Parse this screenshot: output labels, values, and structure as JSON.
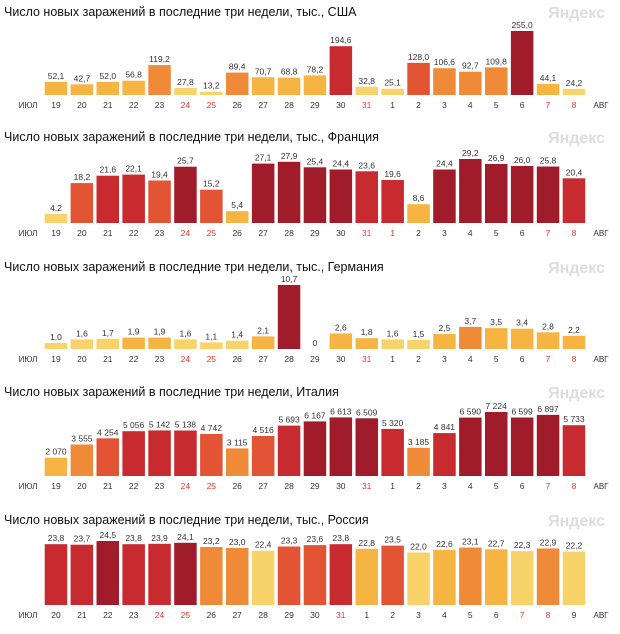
{
  "watermark": "Яндекс",
  "month_start": "ИЮЛ",
  "month_end": "АВГ",
  "colors": {
    "palette": [
      "#f8d36a",
      "#f6b442",
      "#ef8a38",
      "#e35435",
      "#c72a2f",
      "#a01c2b"
    ],
    "weekend_tick": "#e03a2d",
    "tick": "#333333",
    "label": "#333333",
    "title": "#111111",
    "watermark": "#dddddd"
  },
  "chart_data": [
    {
      "type": "bar",
      "title": "Число новых заражений в последние три недели, тыс., США",
      "categories": [
        "19",
        "20",
        "21",
        "22",
        "23",
        "24",
        "25",
        "26",
        "27",
        "28",
        "29",
        "30",
        "31",
        "1",
        "2",
        "3",
        "4",
        "5",
        "6",
        "7",
        "8"
      ],
      "values": [
        52.1,
        42.7,
        52.0,
        56.8,
        119.2,
        27.8,
        13.2,
        89.4,
        70.7,
        68.8,
        78.2,
        194.6,
        32.8,
        25.1,
        128.0,
        106.6,
        92.7,
        109.8,
        255.0,
        44.1,
        24.2
      ],
      "labels": [
        "52,1",
        "42,7",
        "52,0",
        "56,8",
        "119,2",
        "27,8",
        "13,2",
        "89,4",
        "70,7",
        "68,8",
        "78,2",
        "194,6",
        "32,8",
        "25,1",
        "128,0",
        "106,6",
        "92,7",
        "109,8",
        "255,0",
        "44,1",
        "24,2"
      ],
      "weekend": [
        5,
        6,
        12,
        19,
        20
      ],
      "ylim": [
        0,
        255
      ]
    },
    {
      "type": "bar",
      "title": "Число новых заражений в последние три недели, тыс., Франция",
      "categories": [
        "19",
        "20",
        "21",
        "22",
        "23",
        "24",
        "25",
        "26",
        "27",
        "28",
        "29",
        "30",
        "31",
        "1",
        "2",
        "3",
        "4",
        "5",
        "6",
        "7",
        "8"
      ],
      "values": [
        4.2,
        18.2,
        21.6,
        22.1,
        19.4,
        25.7,
        15.2,
        5.4,
        27.1,
        27.9,
        25.4,
        24.4,
        23.6,
        19.6,
        8.6,
        24.4,
        29.2,
        26.9,
        26.0,
        25.8,
        20.4
      ],
      "labels": [
        "4,2",
        "18,2",
        "21,6",
        "22,1",
        "19,4",
        "25,7",
        "15,2",
        "5,4",
        "27,1",
        "27,9",
        "25,4",
        "24,4",
        "23,6",
        "19,6",
        "8,6",
        "24,4",
        "29,2",
        "26,9",
        "26,0",
        "25,8",
        "20,4"
      ],
      "weekend": [
        5,
        6,
        12,
        13,
        19,
        20
      ],
      "ylim": [
        0,
        29.2
      ]
    },
    {
      "type": "bar",
      "title": "Число новых заражений в последние три недели, тыс., Германия",
      "categories": [
        "19",
        "20",
        "21",
        "22",
        "23",
        "24",
        "25",
        "26",
        "27",
        "28",
        "29",
        "30",
        "31",
        "1",
        "2",
        "3",
        "4",
        "5",
        "6",
        "7",
        "8"
      ],
      "values": [
        1.0,
        1.6,
        1.7,
        1.9,
        1.9,
        1.6,
        1.1,
        1.4,
        2.1,
        10.7,
        0,
        2.6,
        1.8,
        1.6,
        1.5,
        2.5,
        3.7,
        3.5,
        3.4,
        2.8,
        2.2
      ],
      "labels": [
        "1,0",
        "1,6",
        "1,7",
        "1,9",
        "1,9",
        "1,6",
        "1,1",
        "1,4",
        "2,1",
        "10,7",
        "0",
        "2,6",
        "1,8",
        "1,6",
        "1,5",
        "2,5",
        "3,7",
        "3,5",
        "3,4",
        "2,8",
        "2,2"
      ],
      "weekend": [
        5,
        6,
        12,
        19,
        20
      ],
      "ylim": [
        0,
        10.7
      ]
    },
    {
      "type": "bar",
      "title": "Число новых заражений в последние три недели, Италия",
      "categories": [
        "19",
        "20",
        "21",
        "22",
        "23",
        "24",
        "25",
        "26",
        "27",
        "28",
        "29",
        "30",
        "31",
        "1",
        "2",
        "3",
        "4",
        "5",
        "6",
        "7",
        "8"
      ],
      "values": [
        2070,
        3555,
        4254,
        5056,
        5142,
        5138,
        4742,
        3115,
        4516,
        5693,
        6167,
        6613,
        6509,
        5320,
        3185,
        4841,
        6590,
        7224,
        6599,
        6897,
        5733
      ],
      "labels": [
        "2 070",
        "3 555",
        "4 254",
        "5 056",
        "5 142",
        "5 138",
        "4 742",
        "3 115",
        "4 516",
        "5 693",
        "6 167",
        "6 613",
        "6 509",
        "5 320",
        "3 185",
        "4 841",
        "6 590",
        "7 224",
        "6 599",
        "6 897",
        "5 733"
      ],
      "weekend": [
        5,
        6,
        12,
        19,
        20
      ],
      "ylim": [
        0,
        7224
      ]
    },
    {
      "type": "bar",
      "title": "Число новых заражений в последние три недели, тыс., Россия",
      "categories": [
        "20",
        "21",
        "22",
        "23",
        "24",
        "25",
        "26",
        "27",
        "28",
        "29",
        "30",
        "31",
        "1",
        "2",
        "3",
        "4",
        "5",
        "6",
        "7",
        "8",
        "9"
      ],
      "values": [
        23.8,
        23.7,
        24.5,
        23.8,
        23.9,
        24.1,
        23.2,
        23.0,
        22.4,
        23.3,
        23.6,
        23.8,
        22.8,
        23.5,
        22.0,
        22.6,
        23.1,
        22.7,
        22.3,
        22.9,
        22.2
      ],
      "labels": [
        "23,8",
        "23,7",
        "24,5",
        "23,8",
        "23,9",
        "24,1",
        "23,2",
        "23,0",
        "22,4",
        "23,3",
        "23,6",
        "23,8",
        "22,8",
        "23,5",
        "22,0",
        "22,6",
        "23,1",
        "22,7",
        "22,3",
        "22,9",
        "22,2"
      ],
      "weekend": [
        4,
        5,
        11,
        18,
        19
      ],
      "ylim": [
        0,
        24.5
      ]
    }
  ]
}
